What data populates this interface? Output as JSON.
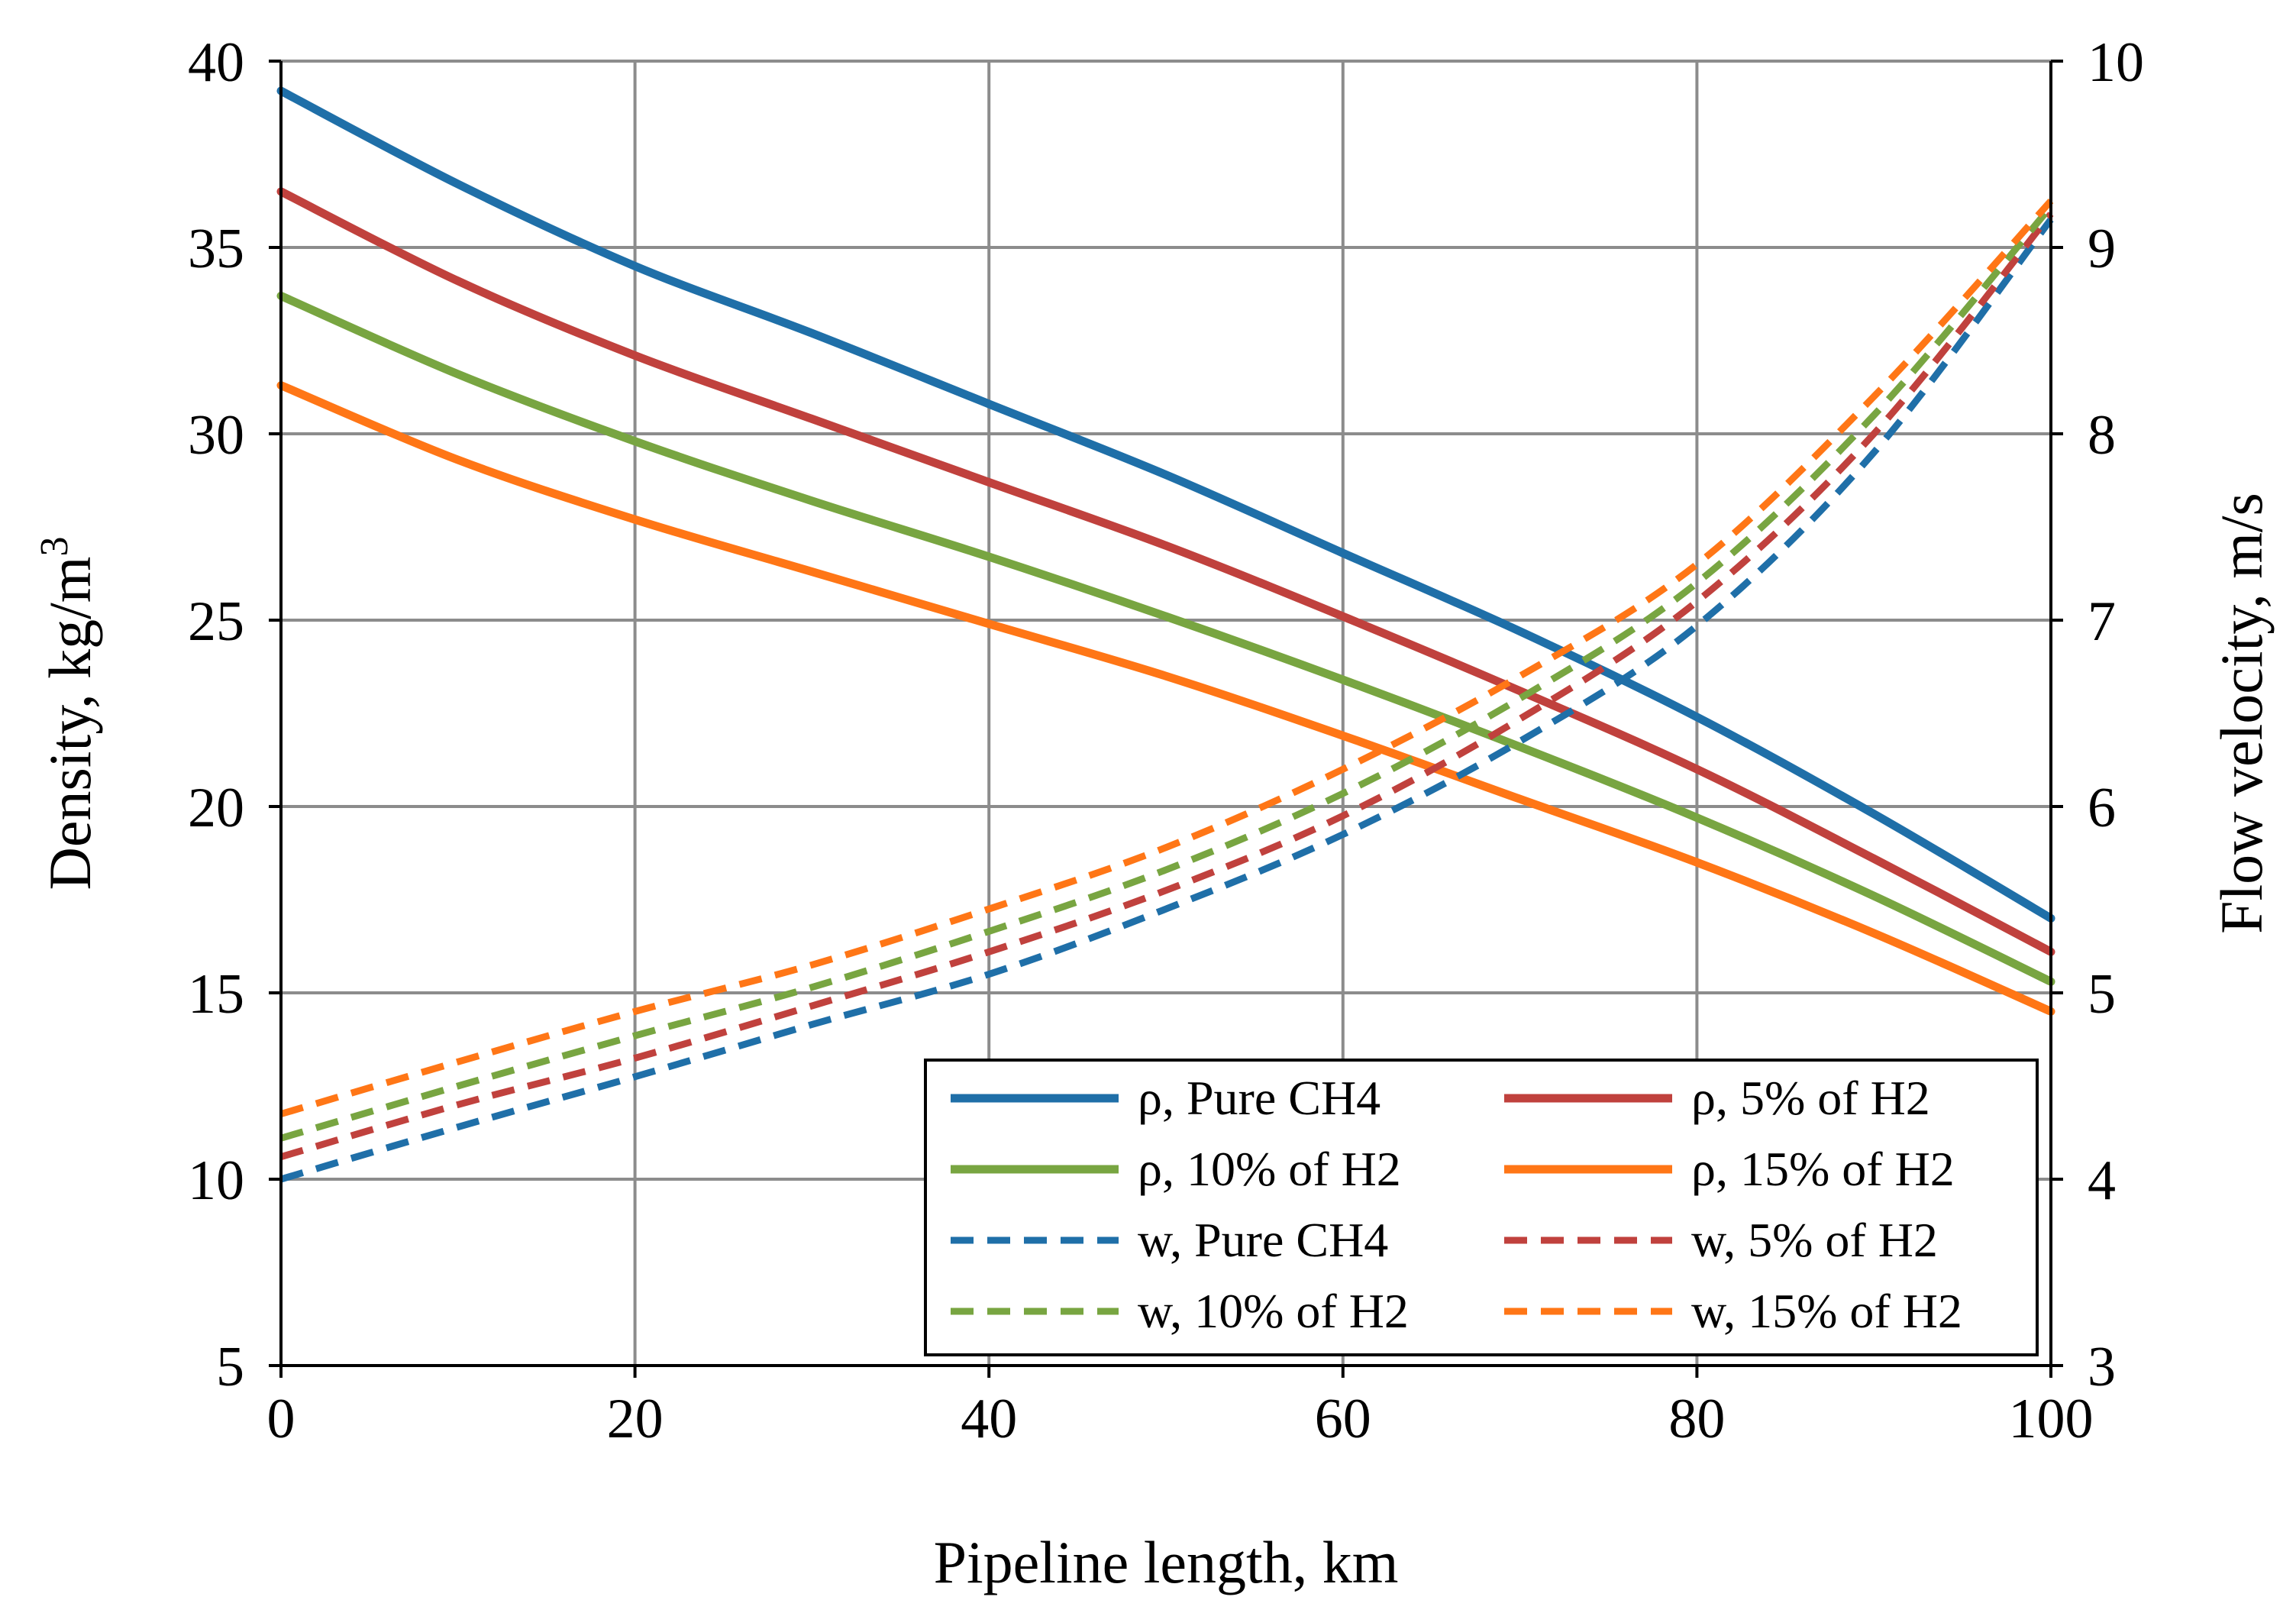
{
  "chart_data": {
    "type": "line",
    "title": "",
    "xlabel": "Pipeline length, km",
    "ylabel": "Density, kg/m",
    "ylabel_sup": "3",
    "y2label": "Flow velocity, m/s",
    "xlim": [
      0,
      100
    ],
    "ylim": [
      5,
      40
    ],
    "y2lim": [
      3,
      10
    ],
    "xticks": [
      "0",
      "20",
      "40",
      "60",
      "80",
      "100"
    ],
    "yticks": [
      "5",
      "10",
      "15",
      "20",
      "25",
      "30",
      "35",
      "40"
    ],
    "y2ticks": [
      "3",
      "4",
      "5",
      "6",
      "7",
      "8",
      "9",
      "10"
    ],
    "grid": true,
    "legend_position": "bottom-right",
    "x": [
      0,
      10,
      20,
      30,
      40,
      50,
      60,
      70,
      80,
      90,
      100
    ],
    "series": [
      {
        "name": "ρ, Pure CH4",
        "axis": "left",
        "style": "solid",
        "color": "#1f6fa8",
        "values": [
          39.2,
          36.7,
          34.5,
          32.7,
          30.8,
          28.9,
          26.8,
          24.7,
          22.4,
          19.8,
          17.0
        ]
      },
      {
        "name": "ρ, 5% of H2",
        "axis": "left",
        "style": "solid",
        "color": "#c0413d",
        "values": [
          36.5,
          34.1,
          32.1,
          30.4,
          28.7,
          27.0,
          25.1,
          23.1,
          21.0,
          18.6,
          16.1
        ]
      },
      {
        "name": "ρ, 10% of H2",
        "axis": "left",
        "style": "solid",
        "color": "#78a541",
        "values": [
          33.7,
          31.6,
          29.8,
          28.2,
          26.7,
          25.1,
          23.4,
          21.6,
          19.7,
          17.6,
          15.3
        ]
      },
      {
        "name": "ρ, 15% of H2",
        "axis": "left",
        "style": "solid",
        "color": "#ff7616",
        "values": [
          31.3,
          29.3,
          27.7,
          26.3,
          24.9,
          23.5,
          21.9,
          20.2,
          18.5,
          16.6,
          14.5
        ]
      },
      {
        "name": "w, Pure CH4",
        "axis": "right",
        "style": "dashed",
        "color": "#1f6fa8",
        "values": [
          4.0,
          4.28,
          4.55,
          4.83,
          5.1,
          5.45,
          5.85,
          6.35,
          6.97,
          7.9,
          9.15
        ]
      },
      {
        "name": "w, 5% of H2",
        "axis": "right",
        "style": "dashed",
        "color": "#c0413d",
        "values": [
          4.12,
          4.4,
          4.65,
          4.93,
          5.22,
          5.55,
          5.95,
          6.47,
          7.1,
          8.0,
          9.18
        ]
      },
      {
        "name": "w, 10% of H2",
        "axis": "right",
        "style": "dashed",
        "color": "#78a541",
        "values": [
          4.22,
          4.5,
          4.77,
          5.03,
          5.33,
          5.66,
          6.07,
          6.58,
          7.2,
          8.1,
          9.22
        ]
      },
      {
        "name": "w, 15% of H2",
        "axis": "right",
        "style": "dashed",
        "color": "#ff7616",
        "values": [
          4.35,
          4.63,
          4.9,
          5.15,
          5.45,
          5.78,
          6.2,
          6.7,
          7.3,
          8.2,
          9.25
        ]
      }
    ]
  }
}
